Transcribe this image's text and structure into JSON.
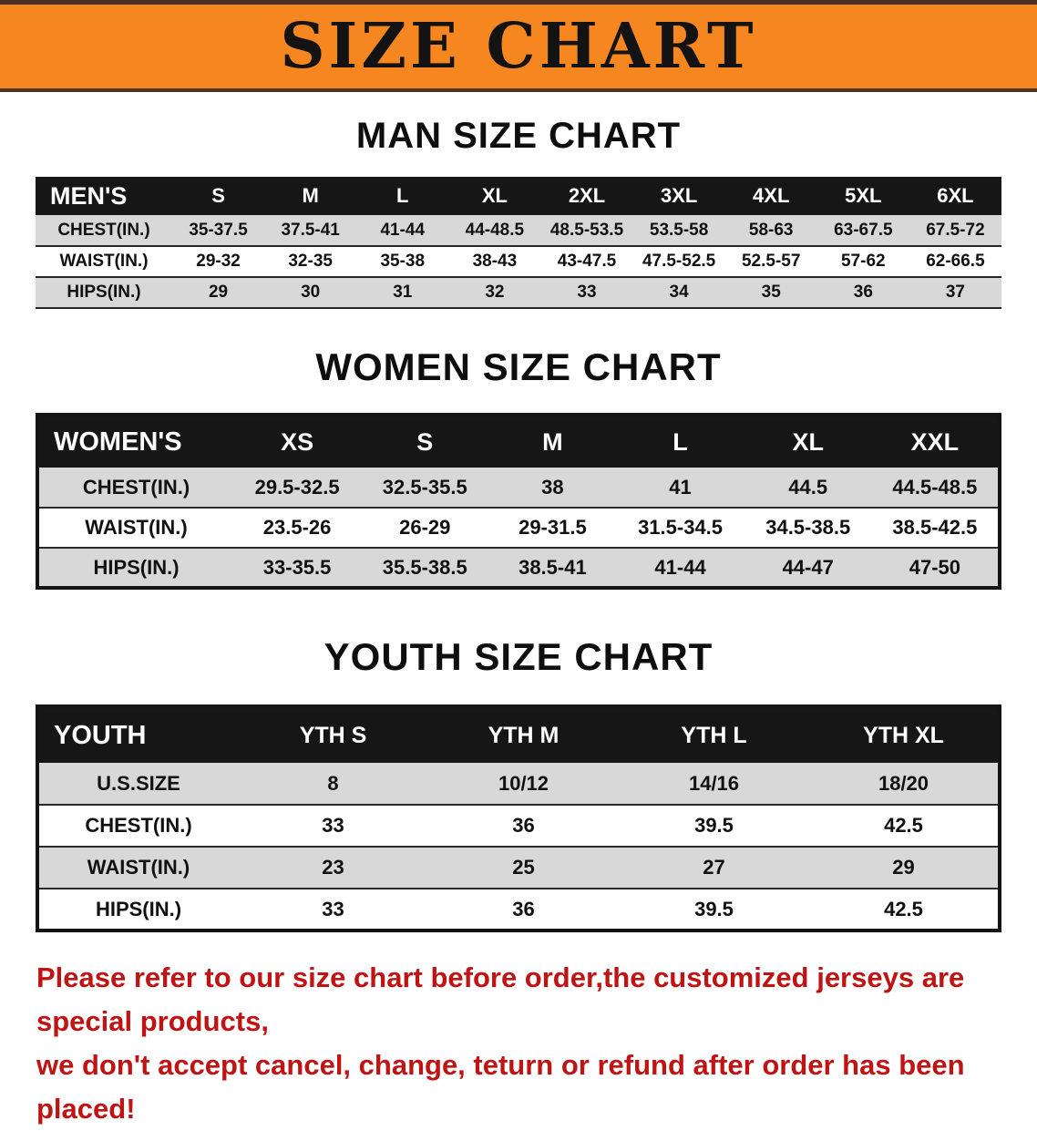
{
  "banner": {
    "title": "SIZE CHART"
  },
  "colors": {
    "banner_orange": "#f6861f",
    "table_header_black": "#161616",
    "row_stripe_gray": "#d8d8d8",
    "notice_red": "#c01414"
  },
  "sections": [
    {
      "heading": "MAN SIZE CHART",
      "table": {
        "corner": "MEN'S",
        "columns": [
          "S",
          "M",
          "L",
          "XL",
          "2XL",
          "3XL",
          "4XL",
          "5XL",
          "6XL"
        ],
        "rows": [
          {
            "label": "CHEST(IN.)",
            "values": [
              "35-37.5",
              "37.5-41",
              "41-44",
              "44-48.5",
              "48.5-53.5",
              "53.5-58",
              "58-63",
              "63-67.5",
              "67.5-72"
            ]
          },
          {
            "label": "WAIST(IN.)",
            "values": [
              "29-32",
              "32-35",
              "35-38",
              "38-43",
              "43-47.5",
              "47.5-52.5",
              "52.5-57",
              "57-62",
              "62-66.5"
            ]
          },
          {
            "label": "HIPS(IN.)",
            "values": [
              "29",
              "30",
              "31",
              "32",
              "33",
              "34",
              "35",
              "36",
              "37"
            ]
          }
        ]
      }
    },
    {
      "heading": "WOMEN SIZE CHART",
      "table": {
        "corner": "WOMEN'S",
        "columns": [
          "XS",
          "S",
          "M",
          "L",
          "XL",
          "XXL"
        ],
        "rows": [
          {
            "label": "CHEST(IN.)",
            "values": [
              "29.5-32.5",
              "32.5-35.5",
              "38",
              "41",
              "44.5",
              "44.5-48.5"
            ]
          },
          {
            "label": "WAIST(IN.)",
            "values": [
              "23.5-26",
              "26-29",
              "29-31.5",
              "31.5-34.5",
              "34.5-38.5",
              "38.5-42.5"
            ]
          },
          {
            "label": "HIPS(IN.)",
            "values": [
              "33-35.5",
              "35.5-38.5",
              "38.5-41",
              "41-44",
              "44-47",
              "47-50"
            ]
          }
        ]
      }
    },
    {
      "heading": "YOUTH SIZE CHART",
      "table": {
        "corner": "YOUTH",
        "columns": [
          "YTH S",
          "YTH M",
          "YTH L",
          "YTH XL"
        ],
        "rows": [
          {
            "label": "U.S.SIZE",
            "values": [
              "8",
              "10/12",
              "14/16",
              "18/20"
            ]
          },
          {
            "label": "CHEST(IN.)",
            "values": [
              "33",
              "36",
              "39.5",
              "42.5"
            ]
          },
          {
            "label": "WAIST(IN.)",
            "values": [
              "23",
              "25",
              "27",
              "29"
            ]
          },
          {
            "label": "HIPS(IN.)",
            "values": [
              "33",
              "36",
              "39.5",
              "42.5"
            ]
          }
        ]
      }
    }
  ],
  "footer": {
    "lines": [
      "Please refer to our size chart before order,the customized jerseys are special products,",
      "we don't accept cancel, change, teturn or refund after order has been placed!"
    ]
  }
}
